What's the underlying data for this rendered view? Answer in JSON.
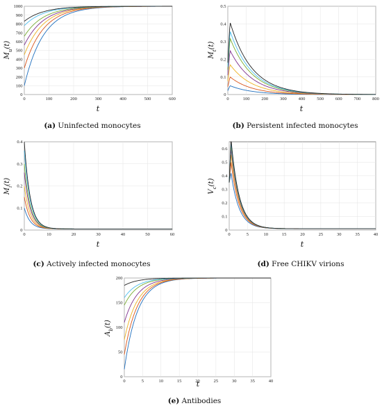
{
  "colors": [
    "#1f6fbe",
    "#d95319",
    "#edb120",
    "#7e2f8e",
    "#77ac30",
    "#4dbeee",
    "#222222"
  ],
  "chart_data": [
    {
      "id": "a",
      "type": "line",
      "caption_tag": "(a)",
      "caption_text": " Uninfected monocytes",
      "xlabel": "t",
      "ylabel": "M_u(t)",
      "ylabel_main": "M",
      "ylabel_sub": "u",
      "xlim": [
        0,
        600
      ],
      "ylim": [
        0,
        1000
      ],
      "xticks": [
        0,
        100,
        200,
        300,
        400,
        500,
        600
      ],
      "yticks": [
        0,
        100,
        200,
        300,
        400,
        500,
        600,
        700,
        800,
        900,
        1000
      ],
      "series_model": "exponential approach to 1000 with rate 0.013 per unit t",
      "initial_values": [
        100,
        300,
        450,
        560,
        660,
        780,
        830
      ],
      "x": [
        0,
        25,
        50,
        100,
        150,
        200,
        300,
        400,
        600
      ],
      "series": [
        {
          "values": [
            100,
            352,
            528,
            757,
            884,
            943,
            986,
            997,
            1000
          ]
        },
        {
          "values": [
            300,
            496,
            632,
            811,
            910,
            956,
            990,
            998,
            1000
          ]
        },
        {
          "values": [
            450,
            601,
            708,
            851,
            930,
            965,
            992,
            998,
            1000
          ]
        },
        {
          "values": [
            560,
            678,
            764,
            880,
            943,
            972,
            994,
            999,
            1000
          ]
        },
        {
          "values": [
            660,
            753,
            823,
            911,
            956,
            978,
            995,
            999,
            1000
          ]
        },
        {
          "values": [
            780,
            845,
            890,
            946,
            974,
            987,
            997,
            999,
            1000
          ]
        },
        {
          "values": [
            830,
            878,
            913,
            958,
            979,
            990,
            998,
            999,
            1000
          ]
        }
      ]
    },
    {
      "id": "b",
      "type": "line",
      "caption_tag": "(b)",
      "caption_text": " Persistent infected monocytes",
      "xlabel": "t",
      "ylabel": "M_t(t)",
      "ylabel_main": "M",
      "ylabel_sub": "t",
      "xlim": [
        0,
        800
      ],
      "ylim": [
        0,
        0.5
      ],
      "xticks": [
        0,
        100,
        200,
        300,
        400,
        500,
        600,
        700,
        800
      ],
      "yticks": [
        0,
        0.1,
        0.2,
        0.3,
        0.4,
        0.5
      ],
      "series_model": "linear rise to peak at t = 12 then exponential decay with rate 0.0085",
      "peak_values": [
        0.05,
        0.1,
        0.17,
        0.25,
        0.32,
        0.36,
        0.41
      ],
      "x": [
        0,
        12,
        50,
        100,
        200,
        300,
        400,
        500,
        600,
        800
      ],
      "series": [
        {
          "values": [
            0.022,
            0.05,
            0.036,
            0.024,
            0.01,
            0.004,
            0.002,
            0.001,
            0.0,
            0.0
          ]
        },
        {
          "values": [
            0.043,
            0.1,
            0.072,
            0.047,
            0.02,
            0.009,
            0.004,
            0.002,
            0.001,
            0.0
          ]
        },
        {
          "values": [
            0.074,
            0.17,
            0.123,
            0.08,
            0.034,
            0.015,
            0.006,
            0.003,
            0.001,
            0.0
          ]
        },
        {
          "values": [
            0.109,
            0.25,
            0.181,
            0.118,
            0.051,
            0.022,
            0.009,
            0.004,
            0.002,
            0.0
          ]
        },
        {
          "values": [
            0.139,
            0.32,
            0.232,
            0.151,
            0.065,
            0.028,
            0.012,
            0.005,
            0.002,
            0.0
          ]
        },
        {
          "values": [
            0.157,
            0.36,
            0.261,
            0.17,
            0.073,
            0.031,
            0.013,
            0.006,
            0.002,
            0.0
          ]
        },
        {
          "values": [
            0.178,
            0.41,
            0.297,
            0.194,
            0.083,
            0.036,
            0.015,
            0.006,
            0.003,
            0.0
          ]
        }
      ]
    },
    {
      "id": "c",
      "type": "line",
      "caption_tag": "(c)",
      "caption_text": " Actively infected monocytes",
      "xlabel": "t",
      "ylabel": "M_i(t)",
      "ylabel_main": "M",
      "ylabel_sub": "i",
      "xlim": [
        0,
        60
      ],
      "ylim": [
        0,
        0.4
      ],
      "xticks": [
        0,
        10,
        20,
        30,
        40,
        50,
        60
      ],
      "yticks": [
        0,
        0.1,
        0.2,
        0.3,
        0.4
      ],
      "series_model": "exponential decay with rate 0.42 toward 0.005",
      "initial_values": [
        0.1,
        0.15,
        0.2,
        0.26,
        0.3,
        0.36,
        0.4
      ],
      "x": [
        0,
        2,
        5,
        10,
        15,
        20,
        30,
        40,
        60
      ],
      "series": [
        {
          "values": [
            0.1,
            0.046,
            0.017,
            0.006,
            0.005,
            0.005,
            0.005,
            0.005,
            0.005
          ]
        },
        {
          "values": [
            0.15,
            0.066,
            0.023,
            0.007,
            0.005,
            0.005,
            0.005,
            0.005,
            0.005
          ]
        },
        {
          "values": [
            0.2,
            0.087,
            0.029,
            0.007,
            0.005,
            0.005,
            0.005,
            0.005,
            0.005
          ]
        },
        {
          "values": [
            0.26,
            0.112,
            0.036,
            0.008,
            0.005,
            0.005,
            0.005,
            0.005,
            0.005
          ]
        },
        {
          "values": [
            0.3,
            0.128,
            0.041,
            0.009,
            0.005,
            0.005,
            0.005,
            0.005,
            0.005
          ]
        },
        {
          "values": [
            0.36,
            0.153,
            0.048,
            0.01,
            0.006,
            0.005,
            0.005,
            0.005,
            0.005
          ]
        },
        {
          "values": [
            0.4,
            0.17,
            0.053,
            0.01,
            0.006,
            0.005,
            0.005,
            0.005,
            0.005
          ]
        }
      ]
    },
    {
      "id": "d",
      "type": "line",
      "caption_tag": "(d)",
      "caption_text": " Free CHIKV virions",
      "xlabel": "t",
      "ylabel": "V_c(t)",
      "ylabel_main": "V",
      "ylabel_sub": "c",
      "xlim": [
        0,
        40
      ],
      "ylim": [
        0,
        0.65
      ],
      "xticks": [
        0,
        5,
        10,
        15,
        20,
        25,
        30,
        35,
        40
      ],
      "yticks": [
        0,
        0.1,
        0.2,
        0.3,
        0.4,
        0.5,
        0.6
      ],
      "series_model": "rise from 0.35 to peak at t = 0.5 then exponential decay with rate 0.45 toward 0.01",
      "peak_values": [
        0.42,
        0.5,
        0.56,
        0.6,
        0.63,
        0.65,
        0.67
      ],
      "x": [
        0,
        0.5,
        1,
        2,
        3,
        5,
        7,
        10,
        15,
        20,
        40
      ],
      "series": [
        {
          "values": [
            0.35,
            0.42,
            0.337,
            0.216,
            0.14,
            0.063,
            0.033,
            0.016,
            0.01,
            0.01,
            0.01
          ]
        },
        {
          "values": [
            0.35,
            0.5,
            0.402,
            0.258,
            0.167,
            0.073,
            0.037,
            0.017,
            0.011,
            0.01,
            0.01
          ]
        },
        {
          "values": [
            0.35,
            0.56,
            0.45,
            0.289,
            0.187,
            0.081,
            0.04,
            0.018,
            0.011,
            0.01,
            0.01
          ]
        },
        {
          "values": [
            0.35,
            0.6,
            0.482,
            0.309,
            0.2,
            0.086,
            0.042,
            0.018,
            0.011,
            0.01,
            0.01
          ]
        },
        {
          "values": [
            0.35,
            0.63,
            0.506,
            0.325,
            0.21,
            0.09,
            0.043,
            0.019,
            0.011,
            0.01,
            0.01
          ]
        },
        {
          "values": [
            0.35,
            0.65,
            0.522,
            0.335,
            0.216,
            0.093,
            0.045,
            0.019,
            0.011,
            0.01,
            0.01
          ]
        },
        {
          "values": [
            0.35,
            0.67,
            0.538,
            0.345,
            0.223,
            0.095,
            0.046,
            0.019,
            0.011,
            0.01,
            0.01
          ]
        }
      ]
    },
    {
      "id": "e",
      "type": "line",
      "caption_tag": "(e)",
      "caption_text": " Antibodies",
      "xlabel": "t",
      "ylabel": "A_b(t)",
      "ylabel_main": "A",
      "ylabel_sub": "b",
      "xlim": [
        0,
        40
      ],
      "ylim": [
        0,
        200
      ],
      "xticks": [
        0,
        5,
        10,
        15,
        20,
        25,
        30,
        35,
        40
      ],
      "yticks": [
        0,
        50,
        100,
        150,
        200
      ],
      "series_model": "exponential approach to 200 with rate 0.28",
      "initial_values": [
        15,
        45,
        75,
        110,
        145,
        160,
        185
      ],
      "x": [
        0,
        2,
        5,
        8,
        10,
        15,
        20,
        25,
        40
      ],
      "series": [
        {
          "values": [
            15.0,
            93.6,
            154.6,
            180.4,
            188.7,
            197.2,
            199.3,
            199.8,
            200.0
          ]
        },
        {
          "values": [
            45.0,
            110.9,
            162.0,
            183.7,
            190.5,
            197.7,
            199.4,
            199.9,
            200.0
          ]
        },
        {
          "values": [
            75.0,
            128.2,
            169.4,
            186.9,
            192.4,
            198.1,
            199.5,
            199.9,
            200.0
          ]
        },
        {
          "values": [
            110.0,
            148.3,
            178.0,
            190.6,
            194.5,
            198.7,
            199.7,
            199.9,
            200.0
          ]
        },
        {
          "values": [
            145.0,
            168.5,
            186.6,
            194.3,
            196.7,
            199.2,
            199.8,
            200.0,
            200.0
          ]
        },
        {
          "values": [
            160.0,
            177.1,
            190.3,
            195.9,
            197.6,
            199.4,
            199.9,
            200.0,
            200.0
          ]
        },
        {
          "values": [
            185.0,
            191.4,
            196.4,
            198.5,
            199.1,
            199.8,
            199.9,
            200.0,
            200.0
          ]
        }
      ]
    }
  ]
}
